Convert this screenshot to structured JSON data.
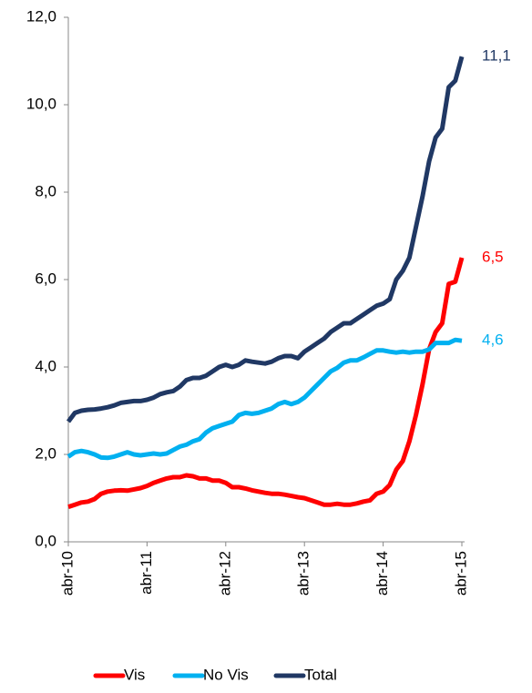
{
  "chart_data": {
    "type": "line",
    "categories": [
      "abr-10",
      null,
      null,
      null,
      null,
      null,
      null,
      null,
      null,
      null,
      null,
      null,
      "abr-11",
      null,
      null,
      null,
      null,
      null,
      null,
      null,
      null,
      null,
      null,
      null,
      "abr-12",
      null,
      null,
      null,
      null,
      null,
      null,
      null,
      null,
      null,
      null,
      null,
      "abr-13",
      null,
      null,
      null,
      null,
      null,
      null,
      null,
      null,
      null,
      null,
      null,
      "abr-14",
      null,
      null,
      null,
      null,
      null,
      null,
      null,
      null,
      null,
      null,
      null,
      "abr-15"
    ],
    "ylim": [
      0,
      12
    ],
    "yticks": [
      {
        "value": 0,
        "label": "0,0"
      },
      {
        "value": 2,
        "label": "2,0"
      },
      {
        "value": 4,
        "label": "4,0"
      },
      {
        "value": 6,
        "label": "6,0"
      },
      {
        "value": 8,
        "label": "8,0"
      },
      {
        "value": 10,
        "label": "10,0"
      },
      {
        "value": 12,
        "label": "12,0"
      }
    ],
    "grid": false,
    "legend": "bottom",
    "series": [
      {
        "name": "Vis",
        "color": "#ff0000",
        "values": [
          0.8,
          0.85,
          0.9,
          0.92,
          0.98,
          1.1,
          1.15,
          1.17,
          1.18,
          1.17,
          1.2,
          1.23,
          1.28,
          1.35,
          1.4,
          1.45,
          1.48,
          1.48,
          1.52,
          1.5,
          1.45,
          1.45,
          1.4,
          1.4,
          1.35,
          1.25,
          1.25,
          1.22,
          1.18,
          1.15,
          1.12,
          1.1,
          1.1,
          1.08,
          1.05,
          1.02,
          1.0,
          0.95,
          0.9,
          0.85,
          0.85,
          0.87,
          0.85,
          0.85,
          0.88,
          0.92,
          0.95,
          1.1,
          1.15,
          1.3,
          1.65,
          1.85,
          2.3,
          2.9,
          3.6,
          4.4,
          4.8,
          5.0,
          5.9,
          5.95,
          6.5
        ],
        "value_labels": [
          null,
          null,
          null,
          null,
          null,
          null,
          null,
          null,
          null,
          null,
          null,
          null,
          null,
          null,
          null,
          null,
          null,
          null,
          null,
          null,
          null,
          null,
          null,
          null,
          null,
          null,
          null,
          null,
          null,
          null,
          null,
          null,
          null,
          null,
          null,
          null,
          null,
          null,
          null,
          null,
          null,
          null,
          null,
          null,
          null,
          null,
          null,
          null,
          null,
          null,
          null,
          null,
          null,
          null,
          null,
          null,
          null,
          null,
          null,
          null,
          "6,5"
        ]
      },
      {
        "name": "No Vis",
        "color": "#00b0f0",
        "values": [
          1.95,
          2.05,
          2.08,
          2.05,
          2.0,
          1.93,
          1.92,
          1.95,
          2.0,
          2.05,
          2.0,
          1.98,
          2.0,
          2.02,
          2.0,
          2.02,
          2.1,
          2.18,
          2.22,
          2.3,
          2.35,
          2.5,
          2.6,
          2.65,
          2.7,
          2.75,
          2.9,
          2.95,
          2.93,
          2.95,
          3.0,
          3.05,
          3.15,
          3.2,
          3.15,
          3.2,
          3.3,
          3.45,
          3.6,
          3.75,
          3.9,
          3.98,
          4.1,
          4.15,
          4.15,
          4.22,
          4.3,
          4.38,
          4.38,
          4.35,
          4.33,
          4.35,
          4.33,
          4.35,
          4.35,
          4.4,
          4.55,
          4.55,
          4.55,
          4.62,
          4.6
        ],
        "value_labels": [
          null,
          null,
          null,
          null,
          null,
          null,
          null,
          null,
          null,
          null,
          null,
          null,
          null,
          null,
          null,
          null,
          null,
          null,
          null,
          null,
          null,
          null,
          null,
          null,
          null,
          null,
          null,
          null,
          null,
          null,
          null,
          null,
          null,
          null,
          null,
          null,
          null,
          null,
          null,
          null,
          null,
          null,
          null,
          null,
          null,
          null,
          null,
          null,
          null,
          null,
          null,
          null,
          null,
          null,
          null,
          null,
          null,
          null,
          null,
          null,
          "4,6"
        ]
      },
      {
        "name": "Total",
        "color": "#203864",
        "values": [
          2.75,
          2.95,
          3.0,
          3.02,
          3.03,
          3.05,
          3.08,
          3.12,
          3.18,
          3.2,
          3.22,
          3.22,
          3.25,
          3.3,
          3.38,
          3.42,
          3.45,
          3.55,
          3.7,
          3.75,
          3.75,
          3.8,
          3.9,
          4.0,
          4.05,
          4.0,
          4.05,
          4.15,
          4.12,
          4.1,
          4.08,
          4.12,
          4.2,
          4.25,
          4.25,
          4.2,
          4.35,
          4.45,
          4.55,
          4.65,
          4.8,
          4.9,
          5.0,
          5.0,
          5.1,
          5.2,
          5.3,
          5.4,
          5.45,
          5.55,
          6.0,
          6.2,
          6.5,
          7.2,
          7.9,
          8.7,
          9.25,
          9.45,
          10.4,
          10.55,
          11.1
        ],
        "value_labels": [
          null,
          null,
          null,
          null,
          null,
          null,
          null,
          null,
          null,
          null,
          null,
          null,
          null,
          null,
          null,
          null,
          null,
          null,
          null,
          null,
          null,
          null,
          null,
          null,
          null,
          null,
          null,
          null,
          null,
          null,
          null,
          null,
          null,
          null,
          null,
          null,
          null,
          null,
          null,
          null,
          null,
          null,
          null,
          null,
          null,
          null,
          null,
          null,
          null,
          null,
          null,
          null,
          null,
          null,
          null,
          null,
          null,
          null,
          null,
          null,
          "11,1"
        ]
      }
    ]
  }
}
